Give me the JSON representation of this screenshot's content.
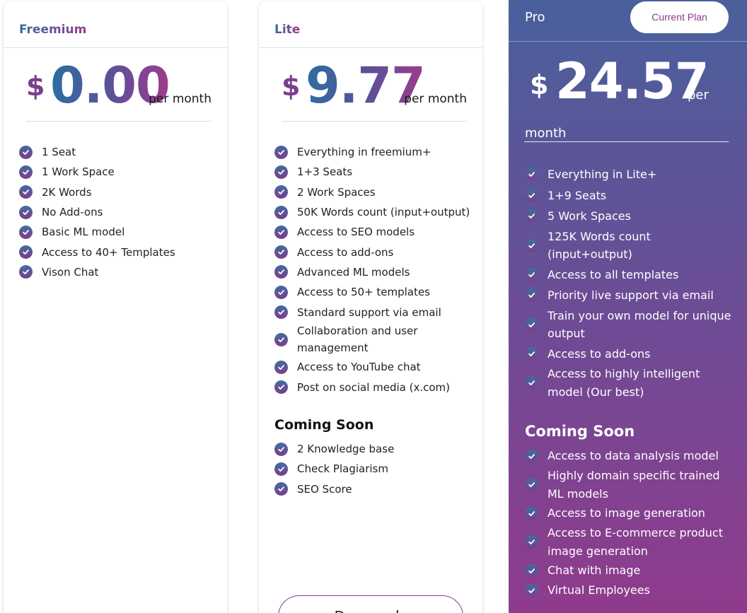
{
  "freemium": {
    "name": "Freemium",
    "currency": "$",
    "amount": "0.00",
    "period": "per month",
    "features": [
      "1 Seat",
      "1 Work Space",
      "2K Words",
      "No Add-ons",
      "Basic ML model",
      "Access to 40+ Templates",
      "Vison Chat"
    ]
  },
  "lite": {
    "name": "Lite",
    "currency": "$",
    "amount": "9.77",
    "period": "per month",
    "features": [
      "Everything in freemium+",
      "1+3 Seats",
      "2 Work Spaces",
      "50K Words count (input+output)",
      "Access to SEO models",
      "Access to add-ons",
      "Advanced ML models",
      "Access to 50+ templates",
      "Standard support via email",
      "Collaboration and user management",
      "Access to YouTube chat",
      "Post on social media (x.com)"
    ],
    "coming_soon_title": "Coming Soon",
    "coming_soon": [
      "2 Knowledge base",
      "Check Plagiarism",
      "SEO Score"
    ],
    "button_label": "Downgrade"
  },
  "pro": {
    "name": "Pro",
    "current_plan_label": "Current Plan",
    "currency": "$",
    "amount": "24.57",
    "period_per": "per",
    "period_month": "month",
    "features": [
      "Everything in Lite+",
      "1+9 Seats",
      "5 Work Spaces",
      "125K Words count (input+output)",
      "Access to all templates",
      "Priority live support via email",
      "Train your own model for unique output",
      "Access to add-ons",
      "Access to highly intelligent model (Our best)"
    ],
    "coming_soon_title": "Coming Soon",
    "coming_soon": [
      "Access to data analysis model",
      "Highly domain specific trained ML models",
      "Access to image generation",
      "Access to E-commerce product image generation",
      "Chat with image",
      "Virtual Employees"
    ]
  },
  "colors": {
    "brand_blue": "#2e6f9a",
    "brand_purple": "#9a3a8f",
    "pro_gradient_top": "#49609c",
    "pro_gradient_bottom": "#913a8c"
  }
}
